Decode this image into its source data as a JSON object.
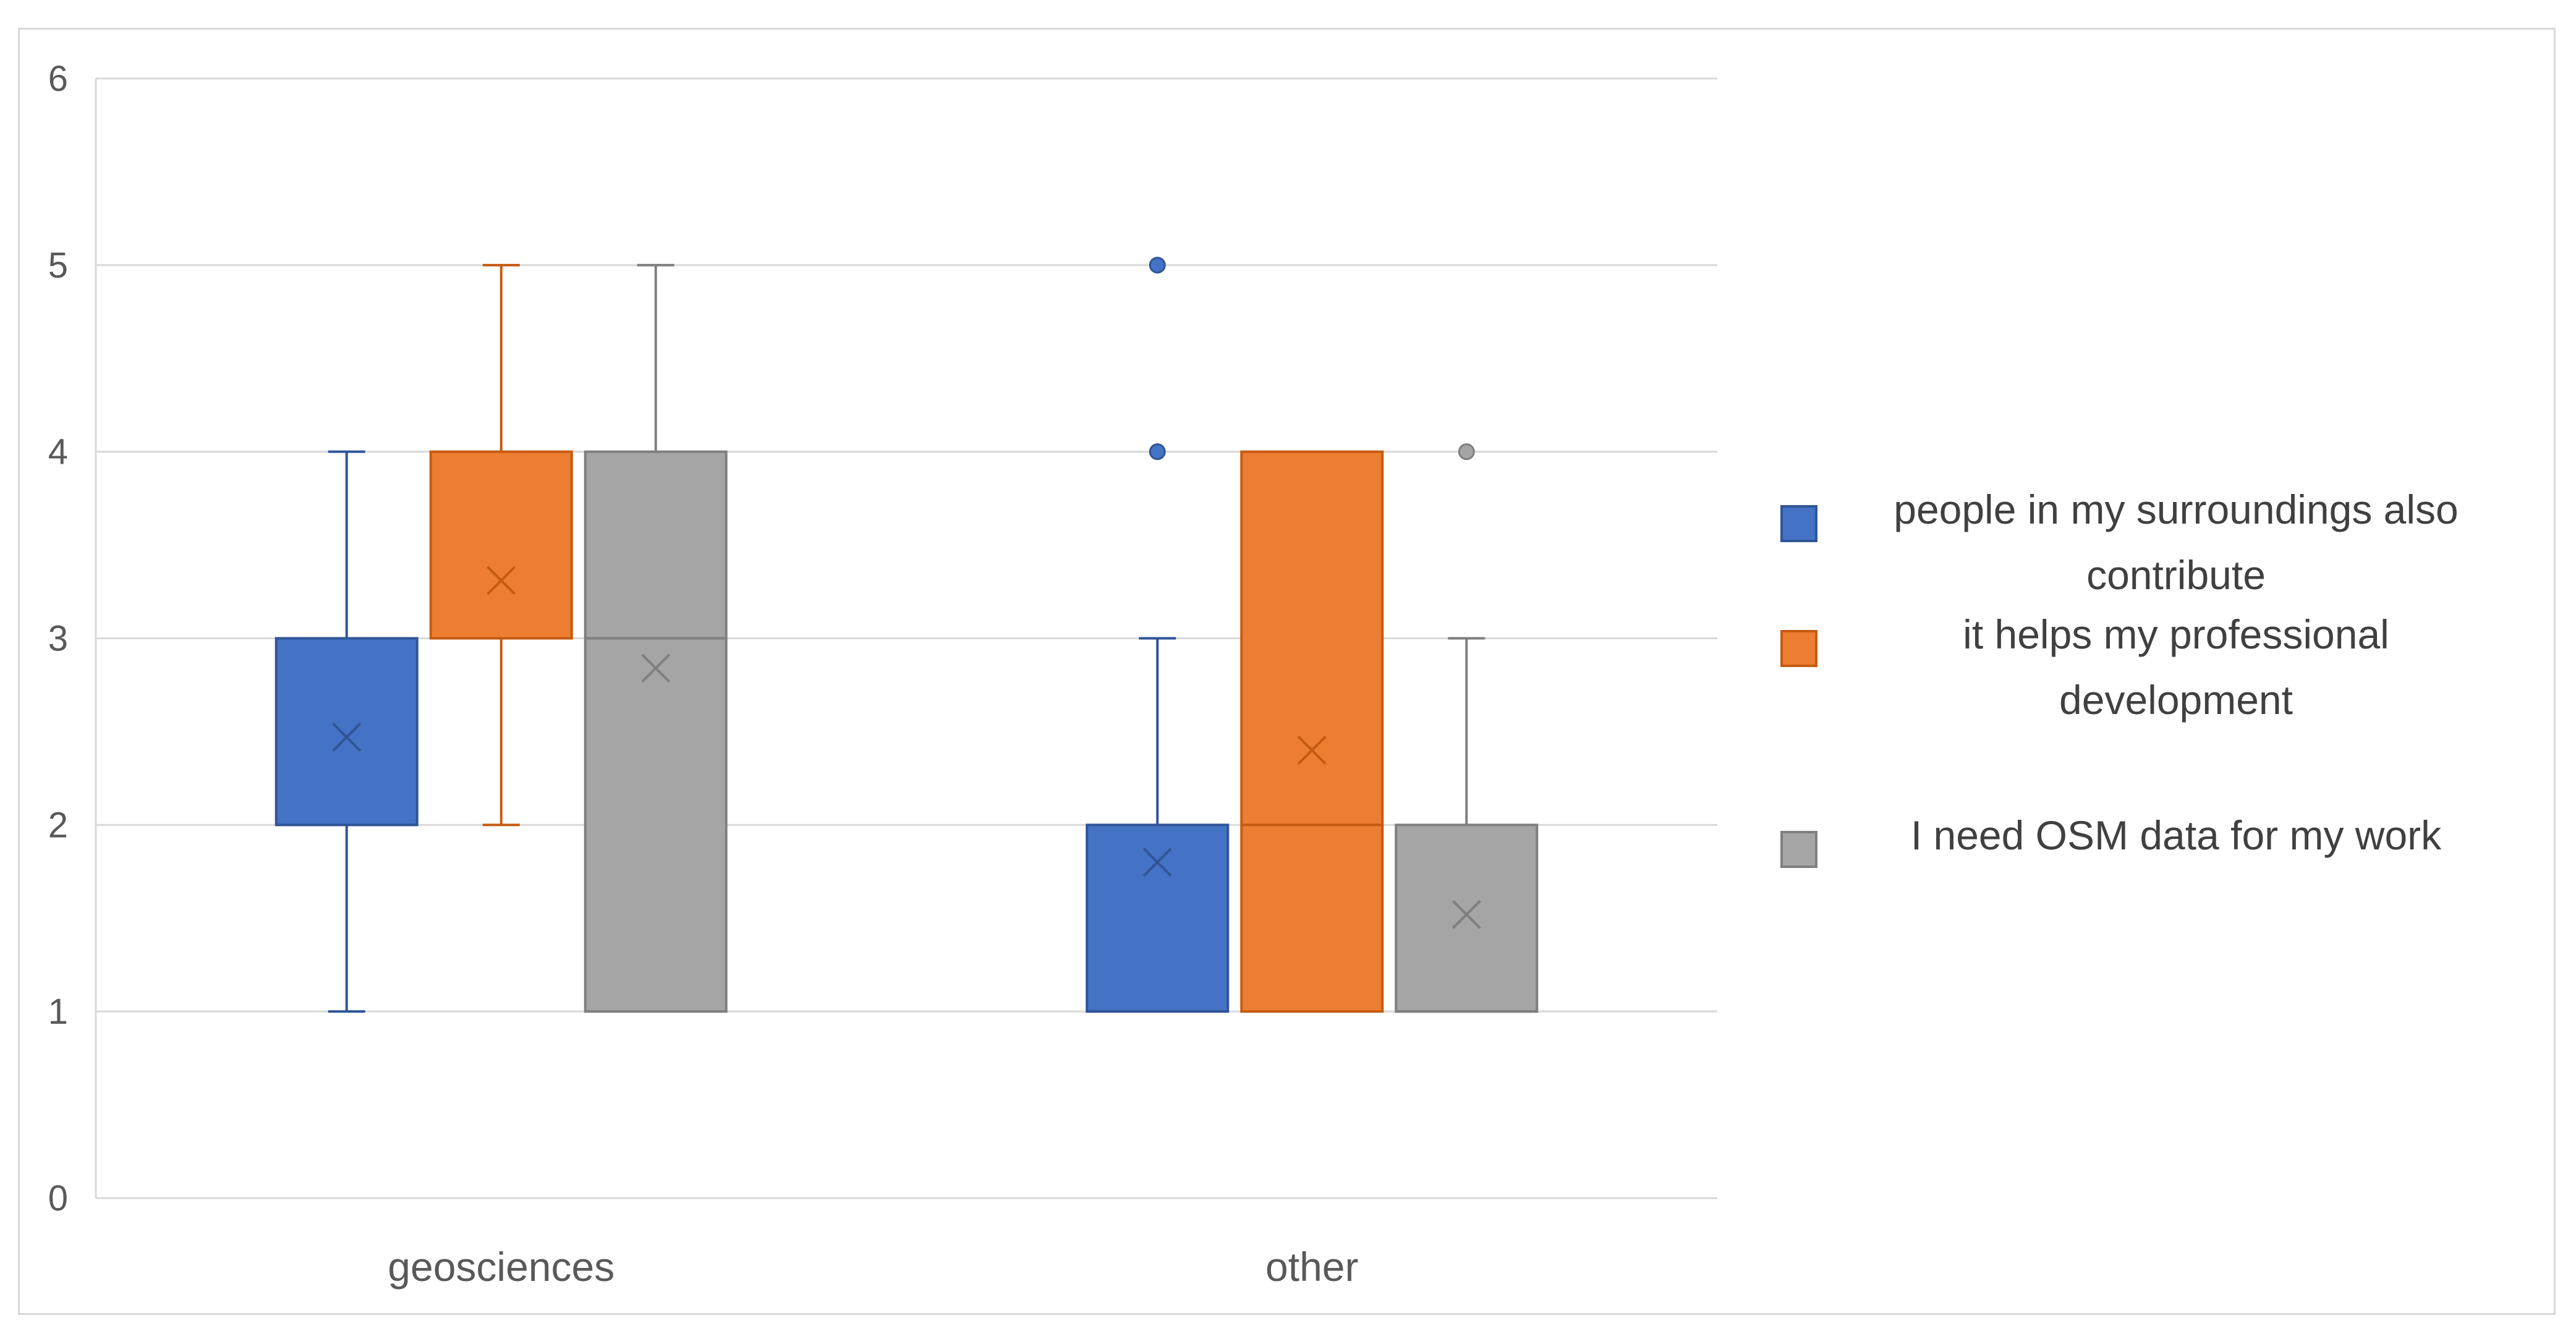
{
  "chart_data": {
    "type": "boxplot",
    "title": "",
    "xlabel": "",
    "ylabel": "",
    "ylim": [
      0,
      6
    ],
    "yticks": [
      0,
      1,
      2,
      3,
      4,
      5,
      6
    ],
    "grid": true,
    "legend_position": "right",
    "categories": [
      "geosciences",
      "other"
    ],
    "series": [
      {
        "name": "people in my surroundings also contribute",
        "legend_lines": [
          "people in my surroundings also",
          "contribute"
        ],
        "color": "#4472c4",
        "stroke": "#2f5597",
        "boxes": [
          {
            "min": 1,
            "q1": 2,
            "median": 2,
            "q3": 3,
            "max": 4,
            "mean": 2.47,
            "outliers": []
          },
          {
            "min": 1,
            "q1": 1,
            "median": 1,
            "q3": 2,
            "max": 3,
            "mean": 1.8,
            "outliers": [
              4,
              5
            ]
          }
        ]
      },
      {
        "name": "it helps my professional development",
        "legend_lines": [
          "it helps my professional",
          "development"
        ],
        "color": "#ed7d31",
        "stroke": "#c55a11",
        "boxes": [
          {
            "min": 2,
            "q1": 3,
            "median": 3,
            "q3": 4,
            "max": 5,
            "mean": 3.31,
            "outliers": []
          },
          {
            "min": 1,
            "q1": 1,
            "median": 2,
            "q3": 4,
            "max": 4,
            "mean": 2.4,
            "outliers": []
          }
        ]
      },
      {
        "name": "I need OSM data for my work",
        "legend_lines": [
          "I need OSM data for my work"
        ],
        "color": "#a5a5a5",
        "stroke": "#7f7f7f",
        "boxes": [
          {
            "min": 1,
            "q1": 1,
            "median": 3,
            "q3": 4,
            "max": 5,
            "mean": 2.84,
            "outliers": []
          },
          {
            "min": 1,
            "q1": 1,
            "median": 1,
            "q3": 2,
            "max": 3,
            "mean": 1.52,
            "outliers": [
              4
            ]
          }
        ]
      }
    ]
  }
}
